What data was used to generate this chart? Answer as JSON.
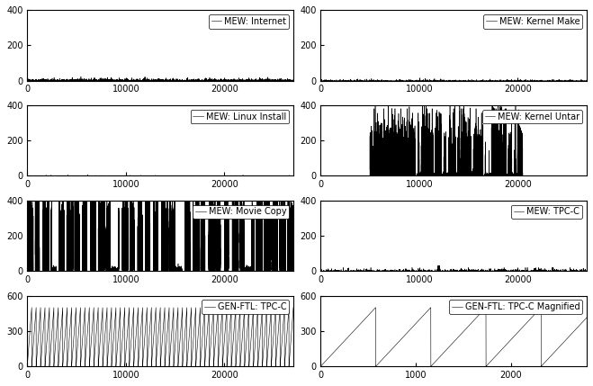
{
  "subplots": [
    {
      "title": "MEW: Internet",
      "xlim": [
        0,
        27000
      ],
      "ylim": [
        0,
        400
      ],
      "yticks": [
        0,
        200,
        400
      ],
      "xticks": [
        0,
        10000,
        20000
      ],
      "type": "internet"
    },
    {
      "title": "MEW: Kernel Make",
      "xlim": [
        0,
        27000
      ],
      "ylim": [
        0,
        400
      ],
      "yticks": [
        0,
        200,
        400
      ],
      "xticks": [
        0,
        10000,
        20000
      ],
      "type": "kernel_make"
    },
    {
      "title": "MEW: Linux Install",
      "xlim": [
        0,
        27000
      ],
      "ylim": [
        0,
        400
      ],
      "yticks": [
        0,
        200,
        400
      ],
      "xticks": [
        0,
        10000,
        20000
      ],
      "type": "linux_install"
    },
    {
      "title": "MEW: Kernel Untar",
      "xlim": [
        0,
        27000
      ],
      "ylim": [
        0,
        400
      ],
      "yticks": [
        0,
        200,
        400
      ],
      "xticks": [
        0,
        10000,
        20000
      ],
      "type": "kernel_untar"
    },
    {
      "title": "MEW: Movie Copy",
      "xlim": [
        0,
        27000
      ],
      "ylim": [
        0,
        400
      ],
      "yticks": [
        0,
        200,
        400
      ],
      "xticks": [
        0,
        10000,
        20000
      ],
      "type": "movie_copy"
    },
    {
      "title": "MEW: TPC-C",
      "xlim": [
        0,
        27000
      ],
      "ylim": [
        0,
        400
      ],
      "yticks": [
        0,
        200,
        400
      ],
      "xticks": [
        0,
        10000,
        20000
      ],
      "type": "tpc_c_mew"
    },
    {
      "title": "GEN-FTL: TPC-C",
      "xlim": [
        0,
        27000
      ],
      "ylim": [
        0,
        600
      ],
      "yticks": [
        0,
        300,
        600
      ],
      "xticks": [
        0,
        10000,
        20000
      ],
      "type": "gen_ftl_tpc_c"
    },
    {
      "title": "GEN-FTL: TPC-C Magnified",
      "xlim": [
        0,
        2800
      ],
      "ylim": [
        0,
        600
      ],
      "yticks": [
        0,
        300,
        600
      ],
      "xticks": [
        0,
        1000,
        2000
      ],
      "type": "gen_ftl_magnified"
    }
  ],
  "line_color": "#000000",
  "line_width": 0.4,
  "background_color": "#ffffff",
  "font_size": 7
}
